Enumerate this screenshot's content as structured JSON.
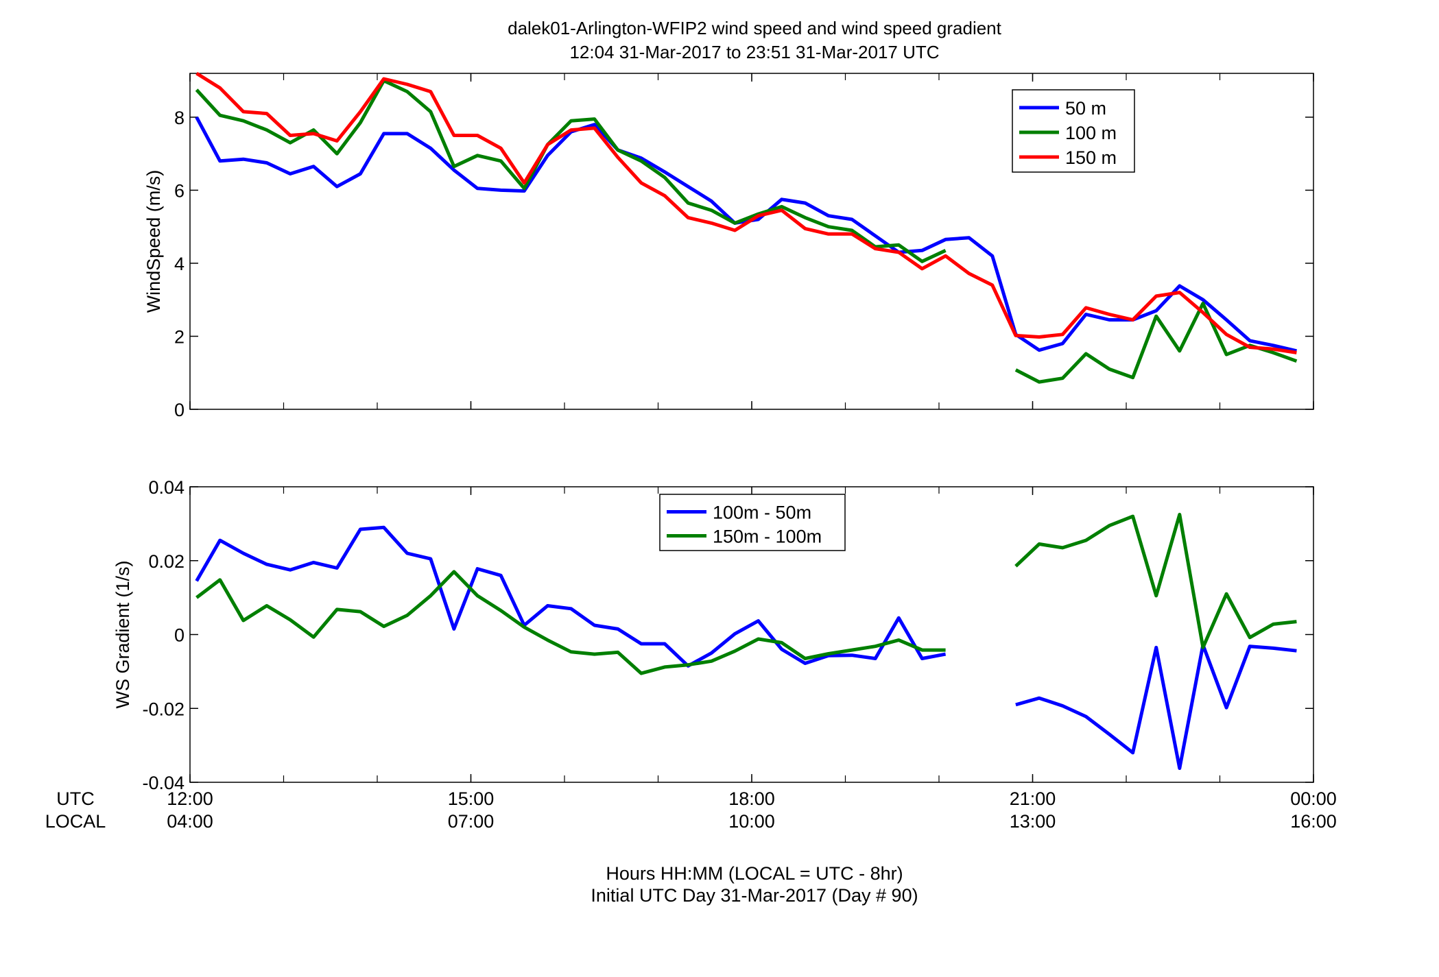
{
  "figure": {
    "title_line1": "dalek01-Arlington-WFIP2  wind speed and wind speed gradient",
    "title_line2": "12:04 31-Mar-2017 to 23:51 31-Mar-2017  UTC",
    "row_label_utc": "UTC",
    "row_label_local": "LOCAL",
    "xlabel_line1": "Hours HH:MM  (LOCAL = UTC - 8hr)",
    "xlabel_line2": "Initial UTC Day 31-Mar-2017 (Day # 90)",
    "x_ticks": [
      {
        "hours": 0,
        "utc": "12:00",
        "local": "04:00"
      },
      {
        "hours": 3,
        "utc": "15:00",
        "local": "07:00"
      },
      {
        "hours": 6,
        "utc": "18:00",
        "local": "10:00"
      },
      {
        "hours": 9,
        "utc": "21:00",
        "local": "13:00"
      },
      {
        "hours": 12,
        "utc": "00:00",
        "local": "16:00"
      }
    ],
    "colors": {
      "blue": "#0000ff",
      "green": "#007f00",
      "red": "#ff0000",
      "axis": "#000000"
    }
  },
  "chart_data": [
    {
      "type": "line",
      "title": "",
      "xlabel": "",
      "ylabel": "WindSpeed (m/s)",
      "x_units": "hours after 12:00 UTC",
      "x_range": [
        0,
        12
      ],
      "ylim": [
        0,
        9.2
      ],
      "yticks": [
        0,
        2,
        4,
        6,
        8
      ],
      "ytick_labels": [
        "0",
        "2",
        "4",
        "6",
        "8"
      ],
      "legend_position": "top-right",
      "x": [
        0.07,
        0.32,
        0.57,
        0.82,
        1.07,
        1.32,
        1.57,
        1.82,
        2.07,
        2.32,
        2.57,
        2.82,
        3.07,
        3.32,
        3.57,
        3.82,
        4.07,
        4.32,
        4.57,
        4.82,
        5.07,
        5.32,
        5.57,
        5.82,
        6.07,
        6.32,
        6.57,
        6.82,
        7.07,
        7.32,
        7.57,
        7.82,
        8.07,
        8.32,
        8.57,
        8.82,
        9.07,
        9.32,
        9.57,
        9.82,
        10.07,
        10.32,
        10.57,
        10.82,
        11.07,
        11.32,
        11.57,
        11.82
      ],
      "series": [
        {
          "name": "50 m",
          "color": "#0000ff",
          "values": [
            8.0,
            6.8,
            6.85,
            6.75,
            6.45,
            6.65,
            6.1,
            6.45,
            7.55,
            7.55,
            7.15,
            6.55,
            6.05,
            6.0,
            5.98,
            6.95,
            7.6,
            7.8,
            7.1,
            6.88,
            6.5,
            6.1,
            5.7,
            5.1,
            5.2,
            5.75,
            5.65,
            5.3,
            5.2,
            4.75,
            4.3,
            4.35,
            4.65,
            4.7,
            4.2,
            2.05,
            1.62,
            1.8,
            2.6,
            2.45,
            2.45,
            2.7,
            3.38,
            3.0,
            2.45,
            1.88,
            1.75,
            1.6
          ]
        },
        {
          "name": "100 m",
          "color": "#007f00",
          "values": [
            8.75,
            8.05,
            7.9,
            7.65,
            7.3,
            7.65,
            7.0,
            7.85,
            9.0,
            8.7,
            8.15,
            6.65,
            6.95,
            6.8,
            6.05,
            7.25,
            7.9,
            7.95,
            7.1,
            6.8,
            6.35,
            5.65,
            5.45,
            5.1,
            5.35,
            5.55,
            5.25,
            5.0,
            4.9,
            4.45,
            4.5,
            4.05,
            4.35,
            null,
            null,
            1.08,
            0.75,
            0.85,
            1.52,
            1.1,
            0.87,
            2.55,
            1.6,
            2.9,
            1.5,
            1.75,
            1.55,
            1.32
          ]
        },
        {
          "name": "150 m",
          "color": "#ff0000",
          "values": [
            9.2,
            8.8,
            8.15,
            8.1,
            7.5,
            7.55,
            7.35,
            8.15,
            9.05,
            8.9,
            8.7,
            7.5,
            7.5,
            7.15,
            6.2,
            7.25,
            7.65,
            7.7,
            6.9,
            6.2,
            5.85,
            5.25,
            5.1,
            4.9,
            5.3,
            5.45,
            4.95,
            4.8,
            4.8,
            4.4,
            4.3,
            3.85,
            4.2,
            3.72,
            3.4,
            2.02,
            1.98,
            2.05,
            2.78,
            2.6,
            2.45,
            3.1,
            3.2,
            2.65,
            2.05,
            1.7,
            1.65,
            1.55
          ]
        }
      ]
    },
    {
      "type": "line",
      "title": "",
      "xlabel": "",
      "ylabel": "WS Gradient (1/s)",
      "x_units": "hours after 12:00 UTC",
      "x_range": [
        0,
        12
      ],
      "ylim": [
        -0.04,
        0.04
      ],
      "yticks": [
        -0.04,
        -0.02,
        0,
        0.02,
        0.04
      ],
      "ytick_labels": [
        "-0.04",
        "-0.02",
        "0",
        "0.02",
        "0.04"
      ],
      "legend_position": "top-center",
      "x": [
        0.07,
        0.32,
        0.57,
        0.82,
        1.07,
        1.32,
        1.57,
        1.82,
        2.07,
        2.32,
        2.57,
        2.82,
        3.07,
        3.32,
        3.57,
        3.82,
        4.07,
        4.32,
        4.57,
        4.82,
        5.07,
        5.32,
        5.57,
        5.82,
        6.07,
        6.32,
        6.57,
        6.82,
        7.07,
        7.32,
        7.57,
        7.82,
        8.07,
        8.32,
        8.57,
        8.82,
        9.07,
        9.32,
        9.57,
        9.82,
        10.07,
        10.32,
        10.57,
        10.82,
        11.07,
        11.32,
        11.57,
        11.82
      ],
      "series": [
        {
          "name": "100m - 50m",
          "color": "#0000ff",
          "values": [
            0.0145,
            0.0255,
            0.022,
            0.019,
            0.0175,
            0.0195,
            0.018,
            0.0285,
            0.029,
            0.022,
            0.0205,
            0.0015,
            0.0178,
            0.016,
            0.0025,
            0.0078,
            0.007,
            0.0025,
            0.0015,
            -0.0025,
            -0.0025,
            -0.0085,
            -0.005,
            0.0002,
            0.0037,
            -0.004,
            -0.0078,
            -0.0057,
            -0.0056,
            -0.0065,
            0.0045,
            -0.0065,
            -0.0053,
            null,
            null,
            -0.019,
            -0.0172,
            -0.0193,
            -0.0222,
            -0.027,
            -0.032,
            -0.0035,
            -0.0362,
            -0.0028,
            -0.0198,
            -0.0032,
            -0.0037,
            -0.0044
          ]
        },
        {
          "name": "150m - 100m",
          "color": "#007f00",
          "values": [
            0.01,
            0.0148,
            0.0038,
            0.0078,
            0.004,
            -0.0007,
            0.0068,
            0.0062,
            0.0022,
            0.0052,
            0.0105,
            0.017,
            0.0105,
            0.0065,
            0.002,
            -0.0015,
            -0.0047,
            -0.0053,
            -0.0048,
            -0.0105,
            -0.0088,
            -0.0082,
            -0.0072,
            -0.0045,
            -0.0012,
            -0.0022,
            -0.0065,
            -0.0052,
            -0.0042,
            -0.0032,
            -0.0015,
            -0.0042,
            -0.0042,
            null,
            null,
            0.0185,
            0.0245,
            0.0235,
            0.0255,
            0.0295,
            0.032,
            0.0105,
            0.0325,
            -0.0035,
            0.011,
            -0.0008,
            0.0028,
            0.0035
          ]
        }
      ]
    }
  ]
}
